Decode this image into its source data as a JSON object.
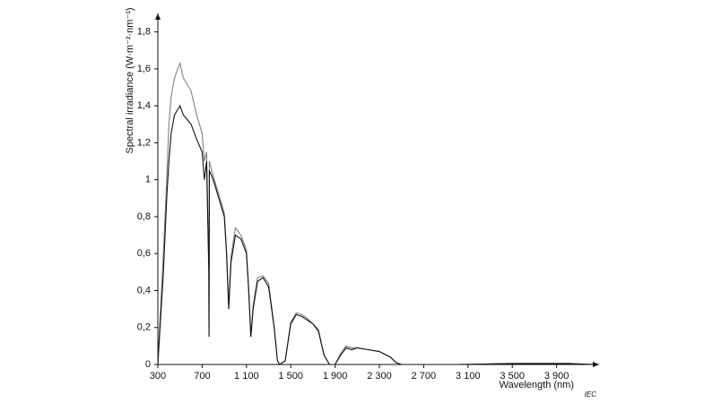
{
  "chart_data": {
    "type": "line",
    "y_label": "Spectral irradiance  (W·m⁻²·nm⁻¹)",
    "x_label": "Wavelength   (nm)",
    "annotation": "IEC",
    "x": [
      300,
      320,
      350,
      380,
      400,
      420,
      450,
      480,
      500,
      530,
      560,
      600,
      650,
      700,
      720,
      740,
      760,
      762,
      765,
      800,
      850,
      900,
      920,
      940,
      960,
      1000,
      1050,
      1100,
      1120,
      1140,
      1160,
      1200,
      1250,
      1300,
      1350,
      1380,
      1400,
      1450,
      1500,
      1550,
      1600,
      1650,
      1700,
      1750,
      1800,
      1850,
      1900,
      1950,
      2000,
      2050,
      2100,
      2200,
      2300,
      2400,
      2450,
      2500,
      2600,
      3000,
      3500,
      4000,
      4250
    ],
    "series": [
      {
        "color": "#808080",
        "values": [
          0,
          0.25,
          0.6,
          1.0,
          1.3,
          1.45,
          1.55,
          1.6,
          1.63,
          1.55,
          1.52,
          1.48,
          1.35,
          1.25,
          1.1,
          1.15,
          0.55,
          0.15,
          1.1,
          1.02,
          0.92,
          0.82,
          0.62,
          0.32,
          0.58,
          0.74,
          0.7,
          0.62,
          0.42,
          0.15,
          0.32,
          0.47,
          0.48,
          0.44,
          0.21,
          0.02,
          0,
          0.02,
          0.23,
          0.28,
          0.27,
          0.25,
          0.22,
          0.19,
          0.05,
          0,
          0,
          0.06,
          0.1,
          0.09,
          0.09,
          0.08,
          0.07,
          0.04,
          0.01,
          0,
          0,
          0,
          0.006,
          0.006,
          0
        ]
      },
      {
        "color": "#111111",
        "values": [
          0,
          0.2,
          0.5,
          0.9,
          1.1,
          1.25,
          1.35,
          1.38,
          1.4,
          1.35,
          1.33,
          1.3,
          1.22,
          1.15,
          1.0,
          1.1,
          0.5,
          0.15,
          1.05,
          1.0,
          0.9,
          0.8,
          0.6,
          0.3,
          0.55,
          0.7,
          0.68,
          0.6,
          0.4,
          0.15,
          0.3,
          0.45,
          0.47,
          0.42,
          0.2,
          0.02,
          0,
          0.02,
          0.22,
          0.27,
          0.26,
          0.24,
          0.22,
          0.18,
          0.05,
          0,
          0,
          0.05,
          0.09,
          0.08,
          0.09,
          0.08,
          0.07,
          0.04,
          0.01,
          0,
          0,
          0,
          0.005,
          0.005,
          0
        ]
      }
    ],
    "xlim": [
      300,
      4300
    ],
    "ylim": [
      0,
      1.9
    ],
    "xticks": [
      300,
      700,
      {
        "value": 1100,
        "label": "1 100"
      },
      {
        "value": 1500,
        "label": "1 500"
      },
      {
        "value": 1900,
        "label": "1 900"
      },
      {
        "value": 2300,
        "label": "2 300"
      },
      {
        "value": 2700,
        "label": "2 700"
      },
      {
        "value": 3100,
        "label": "3 100"
      },
      {
        "value": 3500,
        "label": "3 500"
      },
      {
        "value": 3900,
        "label": "3 900"
      }
    ],
    "yticks": [
      0,
      {
        "value": 0.2,
        "label": "0,2"
      },
      {
        "value": 0.4,
        "label": "0,4"
      },
      {
        "value": 0.6,
        "label": "0,6"
      },
      {
        "value": 0.8,
        "label": "0,8"
      },
      1,
      {
        "value": 1.2,
        "label": "1,2"
      },
      {
        "value": 1.4,
        "label": "1,4"
      },
      {
        "value": 1.6,
        "label": "1,6"
      },
      {
        "value": 1.8,
        "label": "1,8"
      }
    ]
  }
}
